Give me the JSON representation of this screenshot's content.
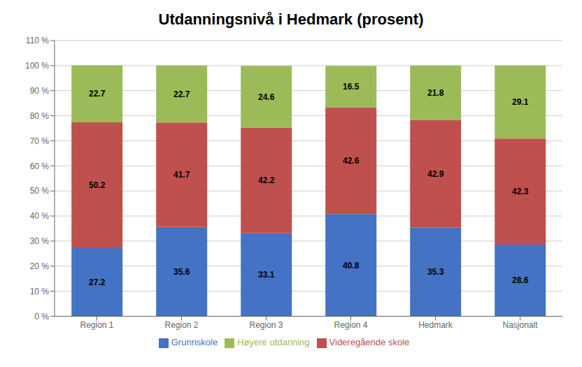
{
  "chart_data": {
    "type": "bar",
    "title": "Utdanningsnivå i Hedmark (prosent)",
    "categories": [
      "Region 1",
      "Region 2",
      "Region 3",
      "Region 4",
      "Hedmark",
      "Nasjonalt"
    ],
    "series": [
      {
        "name": "Grunnskole",
        "color": "#4472C4",
        "values": [
          27.2,
          35.6,
          33.1,
          40.8,
          35.3,
          28.6
        ]
      },
      {
        "name": "Videregående skole",
        "color": "#C0504D",
        "values": [
          50.2,
          41.7,
          42.2,
          42.6,
          42.9,
          42.3
        ]
      },
      {
        "name": "Høyere utdanning",
        "color": "#9BBB59",
        "values": [
          22.7,
          22.7,
          24.6,
          16.5,
          21.8,
          29.1
        ]
      }
    ],
    "stacked": true,
    "data_labels": true,
    "ylim": [
      0,
      110
    ],
    "yticks": [
      {
        "value": 0,
        "label": "0 %"
      },
      {
        "value": 10,
        "label": "10 %"
      },
      {
        "value": 20,
        "label": "20 %"
      },
      {
        "value": 30,
        "label": "30 %"
      },
      {
        "value": 40,
        "label": "40 %"
      },
      {
        "value": 50,
        "label": "50 %"
      },
      {
        "value": 60,
        "label": "60 %"
      },
      {
        "value": 70,
        "label": "70 %"
      },
      {
        "value": 80,
        "label": "80 %"
      },
      {
        "value": 90,
        "label": "90 %"
      },
      {
        "value": 100,
        "label": "100 %"
      },
      {
        "value": 110,
        "label": "110 %"
      }
    ],
    "grid": true,
    "legend": "bottom"
  }
}
